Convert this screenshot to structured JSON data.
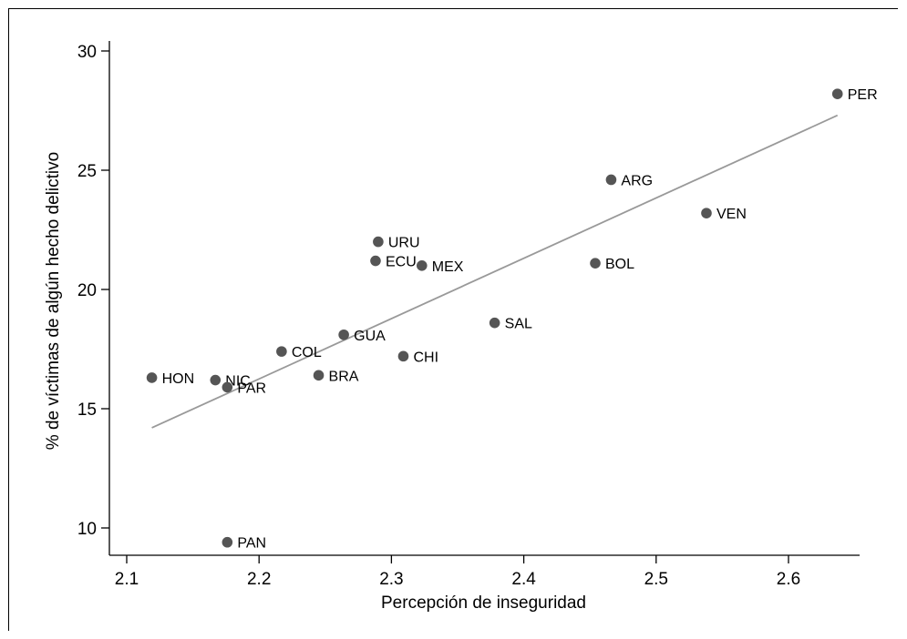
{
  "chart_data": {
    "type": "scatter",
    "xlabel": "Percepción de inseguridad",
    "ylabel": "% de víctimas de algún hecho delictivo",
    "xlim": [
      2.1,
      2.65
    ],
    "ylim": [
      9,
      30.5
    ],
    "xticks": [
      2.1,
      2.2,
      2.3,
      2.4,
      2.5,
      2.6
    ],
    "xtick_labels": [
      "2.1",
      "2.2",
      "2.3",
      "2.4",
      "2.5",
      "2.6"
    ],
    "yticks": [
      10,
      15,
      20,
      25,
      30
    ],
    "ytick_labels": [
      "10",
      "15",
      "20",
      "25",
      "30"
    ],
    "grid": false,
    "points": [
      {
        "label": "PER",
        "x": 2.637,
        "y": 28.2
      },
      {
        "label": "ARG",
        "x": 2.466,
        "y": 24.6
      },
      {
        "label": "VEN",
        "x": 2.538,
        "y": 23.2
      },
      {
        "label": "URU",
        "x": 2.29,
        "y": 22.0
      },
      {
        "label": "ECU",
        "x": 2.288,
        "y": 21.2
      },
      {
        "label": "MEX",
        "x": 2.323,
        "y": 21.0
      },
      {
        "label": "BOL",
        "x": 2.454,
        "y": 21.1
      },
      {
        "label": "SAL",
        "x": 2.378,
        "y": 18.6
      },
      {
        "label": "GUA",
        "x": 2.264,
        "y": 18.1
      },
      {
        "label": "COL",
        "x": 2.217,
        "y": 17.4
      },
      {
        "label": "CHI",
        "x": 2.309,
        "y": 17.2
      },
      {
        "label": "BRA",
        "x": 2.245,
        "y": 16.4
      },
      {
        "label": "HON",
        "x": 2.119,
        "y": 16.3
      },
      {
        "label": "NIC",
        "x": 2.167,
        "y": 16.2
      },
      {
        "label": "PAR",
        "x": 2.176,
        "y": 15.9
      },
      {
        "label": "PAN",
        "x": 2.176,
        "y": 9.4
      }
    ],
    "fit_line": {
      "x": [
        2.119,
        2.637
      ],
      "y": [
        14.2,
        27.3
      ]
    },
    "colors": {
      "points": "#555555",
      "fit_line": "#999999",
      "axes": "#000000"
    }
  }
}
